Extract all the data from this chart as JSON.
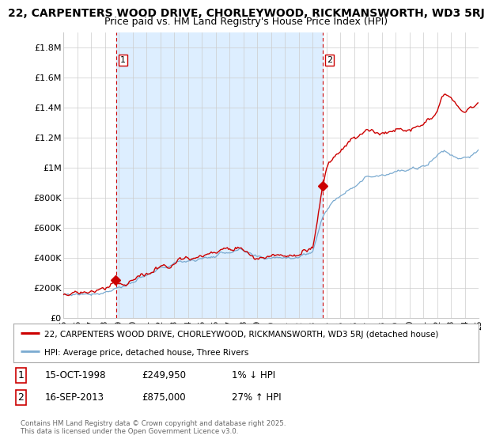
{
  "title1": "22, CARPENTERS WOOD DRIVE, CHORLEYWOOD, RICKMANSWORTH, WD3 5RJ",
  "title2": "Price paid vs. HM Land Registry's House Price Index (HPI)",
  "ylim": [
    0,
    1900000
  ],
  "yticks": [
    0,
    200000,
    400000,
    600000,
    800000,
    1000000,
    1200000,
    1400000,
    1600000,
    1800000
  ],
  "ytick_labels": [
    "£0",
    "£200K",
    "£400K",
    "£600K",
    "£800K",
    "£1M",
    "£1.2M",
    "£1.4M",
    "£1.6M",
    "£1.8M"
  ],
  "x_start_year": 1995,
  "x_end_year": 2025,
  "transaction1": {
    "date_num": 1998.79,
    "price": 249950,
    "label": "1",
    "date_str": "15-OCT-1998",
    "pct": "1%",
    "dir": "↓"
  },
  "transaction2": {
    "date_num": 2013.71,
    "price": 875000,
    "label": "2",
    "date_str": "16-SEP-2013",
    "pct": "27%",
    "dir": "↑"
  },
  "legend_line1": "22, CARPENTERS WOOD DRIVE, CHORLEYWOOD, RICKMANSWORTH, WD3 5RJ (detached house)",
  "legend_line2": "HPI: Average price, detached house, Three Rivers",
  "footnote": "Contains HM Land Registry data © Crown copyright and database right 2025.\nThis data is licensed under the Open Government Licence v3.0.",
  "line1_color": "#cc0000",
  "line2_color": "#7aaad0",
  "shade_color": "#ddeeff",
  "grid_color": "#cccccc",
  "background_color": "#ffffff",
  "title_fontsize": 10,
  "subtitle_fontsize": 9
}
